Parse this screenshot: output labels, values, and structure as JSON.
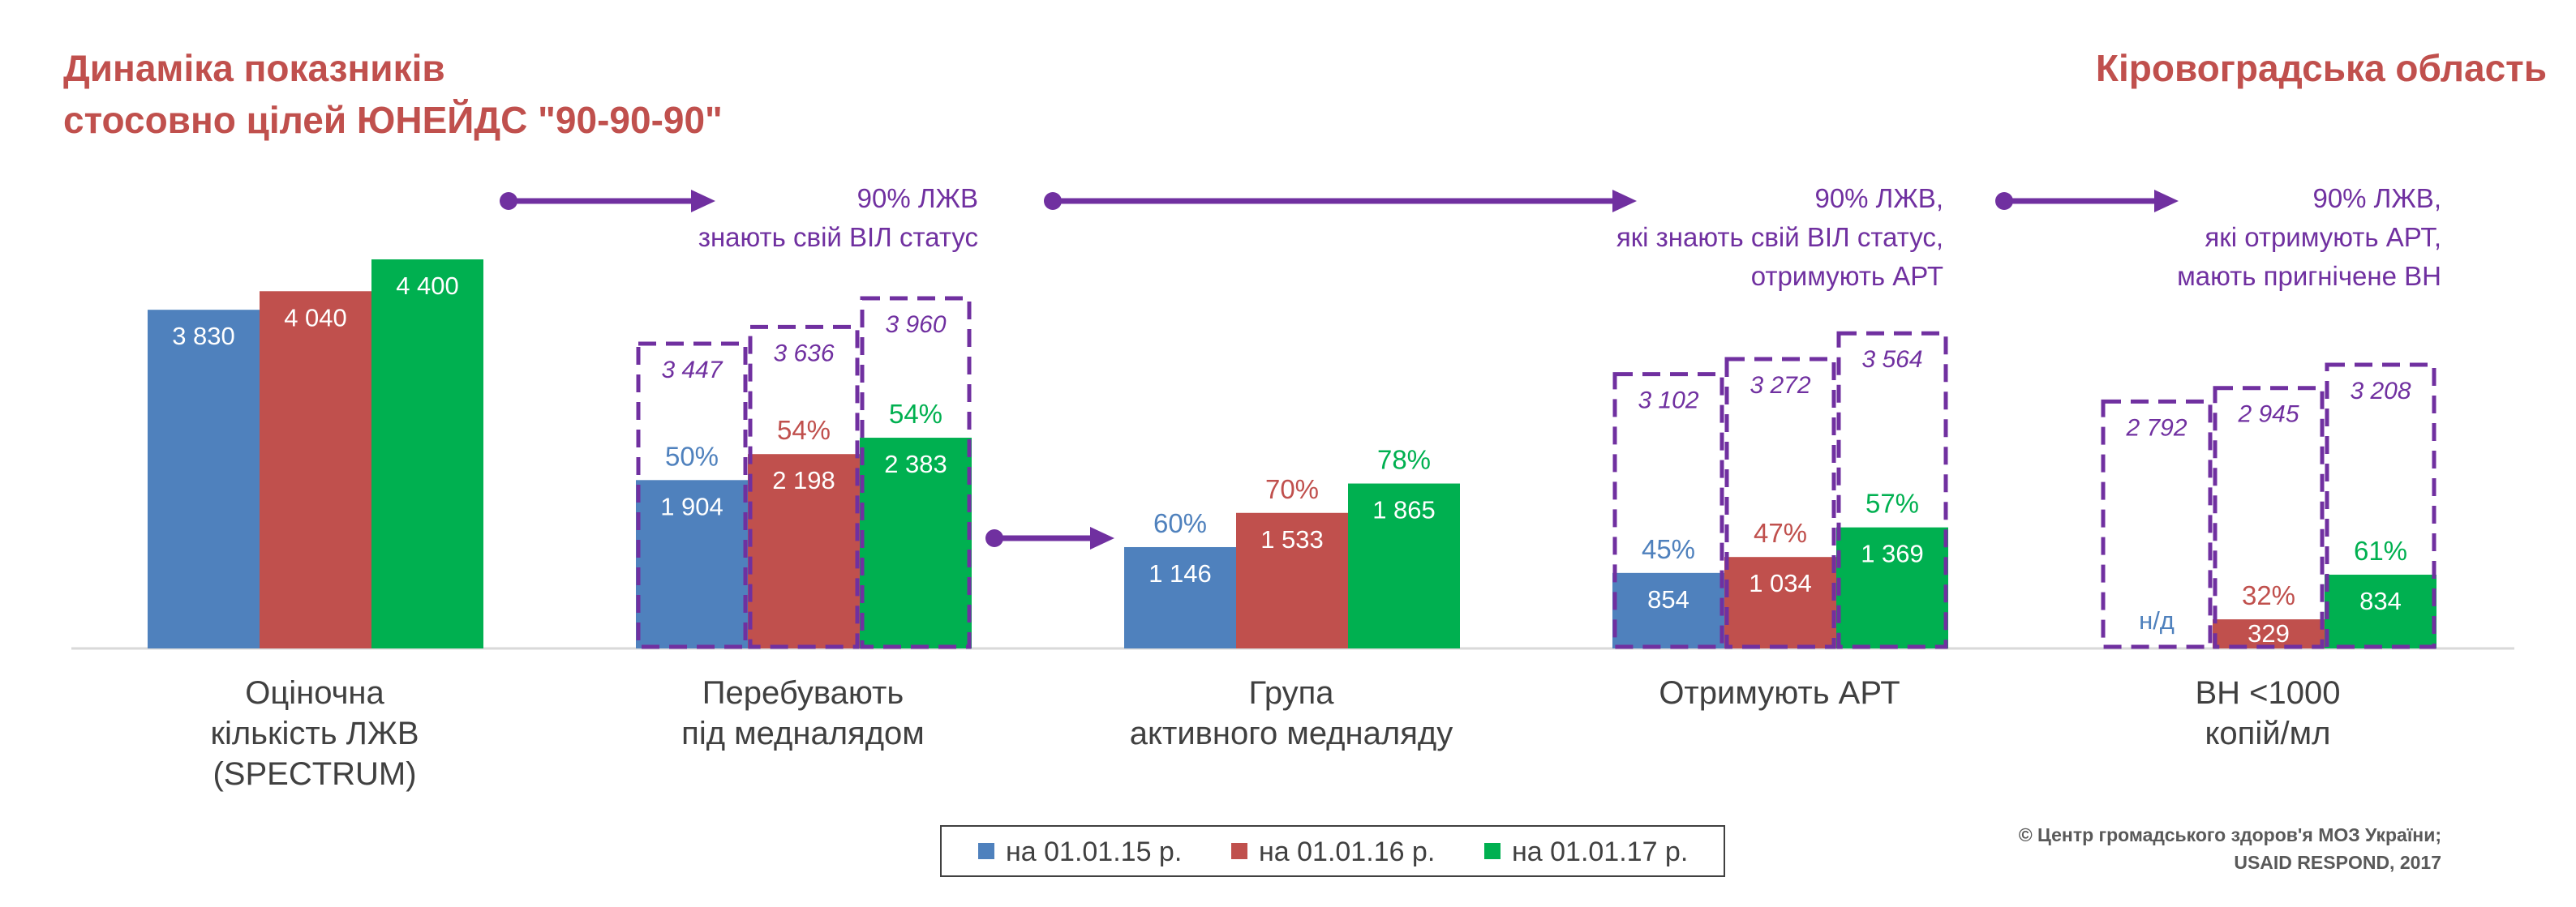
{
  "title_lines": [
    "Динаміка показників",
    "стосовно цілей ЮНЕЙДС \"90-90-90\""
  ],
  "region": "Кіровоградська область",
  "colors": {
    "s0": "#4f81bd",
    "s1": "#c0504d",
    "s2": "#00b050",
    "target": "#7030a0",
    "title": "#c0504d",
    "axis": "#d9d9d9"
  },
  "chart_data": {
    "type": "bar",
    "title": "Динаміка показників стосовно цілей ЮНЕЙДС \"90-90-90\"",
    "ylim": [
      0,
      4400
    ],
    "categories": [
      [
        "Оціночна",
        "кількість ЛЖВ",
        "(SPECTRUM)"
      ],
      [
        "Перебувають",
        "під медналядом"
      ],
      [
        "Група",
        "активного медналяду"
      ],
      [
        "Отримують АРТ"
      ],
      [
        "ВН <1000",
        "копій/мл"
      ]
    ],
    "series": [
      {
        "name": "на 01.01.15 р.",
        "values": [
          3830,
          1904,
          1146,
          854,
          null
        ],
        "labels": [
          "3 830",
          "1 904",
          "1 146",
          "854",
          ""
        ],
        "pct": [
          "",
          "50%",
          "60%",
          "45%",
          ""
        ],
        "targets": [
          null,
          3447,
          null,
          3102,
          2792
        ],
        "target_labels": [
          "",
          "3 447",
          "",
          "3 102",
          "2 792"
        ]
      },
      {
        "name": "на 01.01.16 р.",
        "values": [
          4040,
          2198,
          1533,
          1034,
          329
        ],
        "labels": [
          "4 040",
          "2 198",
          "1 533",
          "1 034",
          "329"
        ],
        "pct": [
          "",
          "54%",
          "70%",
          "47%",
          "32%"
        ],
        "targets": [
          null,
          3636,
          null,
          3272,
          2945
        ],
        "target_labels": [
          "",
          "3 636",
          "",
          "3 272",
          "2 945"
        ]
      },
      {
        "name": "на 01.01.17 р.",
        "values": [
          4400,
          2383,
          1865,
          1369,
          834
        ],
        "labels": [
          "4 400",
          "2 383",
          "1 865",
          "1 369",
          "834"
        ],
        "pct": [
          "",
          "54%",
          "78%",
          "57%",
          "61%"
        ],
        "targets": [
          null,
          3960,
          null,
          3564,
          3208
        ],
        "target_labels": [
          "",
          "3 960",
          "",
          "3 564",
          "3 208"
        ]
      }
    ],
    "missing_label": "н/д",
    "target_notes": [
      [
        "90% ЛЖВ",
        "знають свій ВІЛ статус"
      ],
      [
        "90% ЛЖВ,",
        "які знають свій ВІЛ статус,",
        "отримують АРТ"
      ],
      [
        "90% ЛЖВ,",
        "які отримують АРТ,",
        "мають пригнічене ВН"
      ]
    ],
    "legend": [
      "на 01.01.15 р.",
      "на 01.01.16 р.",
      "на 01.01.17 р."
    ]
  },
  "copyright": [
    "© Центр громадського здоров'я МОЗ України;",
    "USAID RESPOND, 2017"
  ]
}
